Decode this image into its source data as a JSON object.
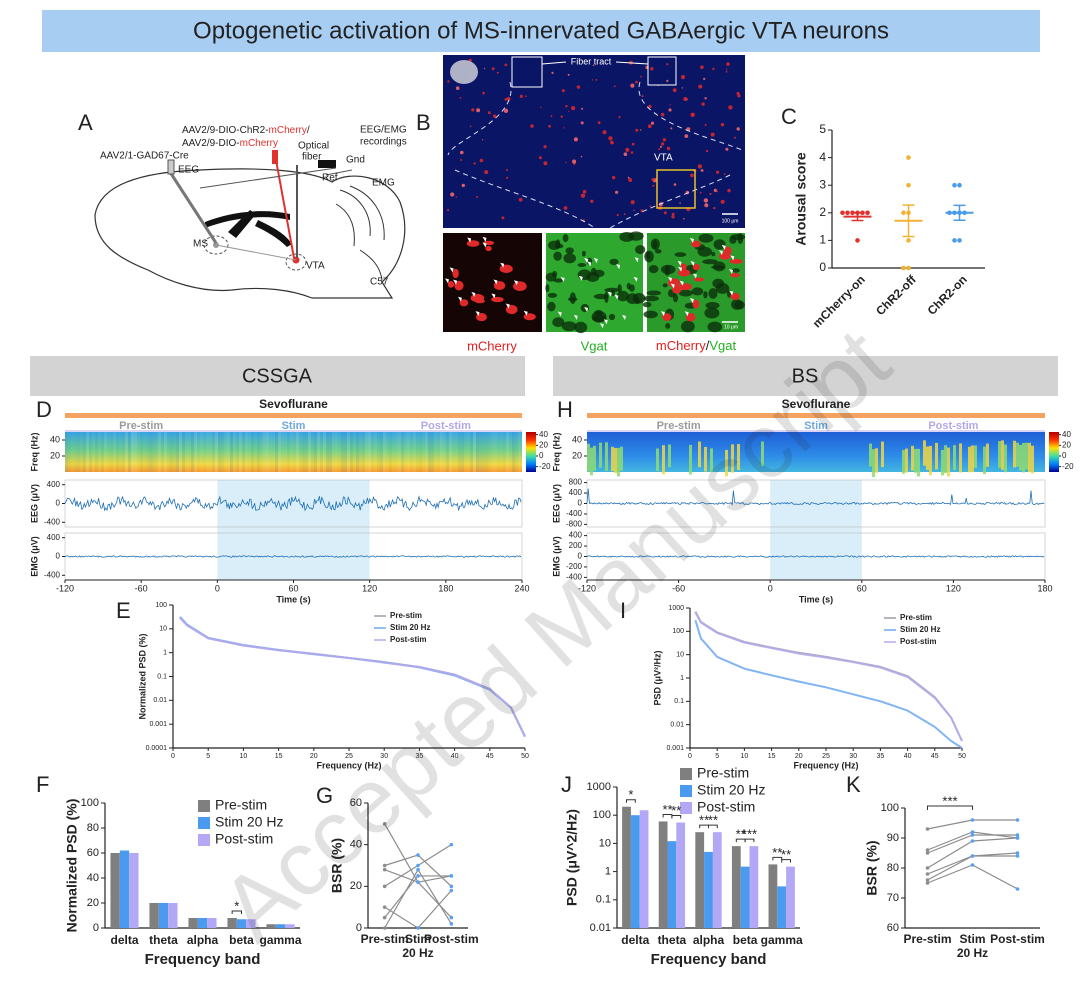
{
  "title": "Optogenetic activation of MS-innervated GABAergic VTA neurons",
  "watermark": "Accepted Manuscript",
  "panel_a": {
    "letter": "A",
    "virus1": "AAV2/9-DIO-ChR2-",
    "virus1_mark": "mCherry",
    "virus1_end": "/",
    "virus2": "AAV2/9-DIO-",
    "virus2_mark": "mCherry",
    "cre": "AAV2/1-GAD67-Cre",
    "eeg": "EEG",
    "fiber": "Optical",
    "fiber2": "fiber",
    "rec": "EEG/EMG",
    "rec2": "recordings",
    "gnd": "Gnd",
    "ref": "Ref",
    "emg": "EMG",
    "ms": "MS",
    "vta": "VTA",
    "strain": "C57"
  },
  "panel_b": {
    "letter": "B",
    "fiber_tract": "Fiber tract",
    "vta": "VTA",
    "scale1": "100 μm",
    "scale2": "10 μm",
    "ch1": "mCherry",
    "ch2": "Vgat",
    "merge1": "mCherry",
    "merge_sep": "/",
    "merge2": "Vgat"
  },
  "sections": [
    "CSSGA",
    "BS"
  ],
  "chart_data": [
    {
      "type": "dot",
      "letter": "C",
      "ylabel": "Arousal score",
      "ylim": [
        0,
        5
      ],
      "yticks": [
        0,
        1,
        2,
        3,
        4,
        5
      ],
      "categories": [
        "mCherry-on",
        "ChR2-off",
        "ChR2-on"
      ],
      "colors": [
        "#e0312f",
        "#f2b233",
        "#4a9be8"
      ],
      "points": [
        [
          2,
          2,
          2,
          2,
          2,
          2,
          1
        ],
        [
          4,
          3,
          2,
          2,
          1,
          0,
          0
        ],
        [
          3,
          3,
          2,
          2,
          2,
          2,
          1,
          1
        ]
      ],
      "means": [
        1.86,
        1.71,
        2.0
      ],
      "sems": [
        0.14,
        0.57,
        0.27
      ]
    },
    {
      "type": "recording",
      "letter": "D",
      "label": "Sevoflurane",
      "phases": [
        "Pre-stim",
        "Stim",
        "Post-stim"
      ],
      "phase_colors": [
        "#9a9a9a",
        "#6fa8dc",
        "#b4a7e8"
      ],
      "bar_color": "#f4a460",
      "stim_color": "#cfeaf8",
      "freq_label": "Freq (Hz)",
      "freq_lim": [
        0,
        50
      ],
      "freq_ticks": [
        40,
        20
      ],
      "colorbar_lim": [
        -30,
        45
      ],
      "colorbar_ticks": [
        40,
        20,
        0,
        -20
      ],
      "eeg_label": "EEG (μV)",
      "eeg_lim": [
        -500,
        500
      ],
      "eeg_ticks": [
        400,
        0,
        -400
      ],
      "emg_label": "EMG (μV)",
      "emg_lim": [
        -500,
        500
      ],
      "emg_ticks": [
        400,
        0,
        -400
      ],
      "xlabel": "Time (s)",
      "xlim": [
        -120,
        240
      ],
      "xticks": [
        -120,
        -60,
        0,
        60,
        120,
        180,
        240
      ],
      "stim": [
        0,
        120
      ]
    },
    {
      "type": "line",
      "letter": "E",
      "ylabel": "Normalized PSD (%)",
      "xlabel": "Frequency (Hz)",
      "ylog": true,
      "ylim": [
        0.0001,
        100
      ],
      "yticks": [
        0.0001,
        0.001,
        0.01,
        0.1,
        1,
        10,
        100
      ],
      "xlim": [
        0,
        50
      ],
      "xticks": [
        0,
        5,
        10,
        15,
        20,
        25,
        30,
        35,
        40,
        45,
        50
      ],
      "x": [
        1,
        2,
        5,
        10,
        15,
        20,
        25,
        30,
        35,
        40,
        45,
        48,
        50
      ],
      "legend": "top-right",
      "series": [
        {
          "name": "Pre-stim",
          "color": "#9b9bab",
          "values": [
            30,
            14,
            4,
            2,
            1.3,
            0.9,
            0.6,
            0.4,
            0.25,
            0.12,
            0.03,
            0.005,
            0.0003
          ]
        },
        {
          "name": "Stim 20 Hz",
          "color": "#6aa8f0",
          "values": [
            32,
            15,
            4.2,
            2.1,
            1.3,
            0.85,
            0.6,
            0.4,
            0.24,
            0.11,
            0.028,
            0.005,
            0.0003
          ]
        },
        {
          "name": "Post-stim",
          "color": "#b9a9ee",
          "values": [
            29,
            14,
            4,
            2,
            1.25,
            0.9,
            0.6,
            0.38,
            0.25,
            0.12,
            0.03,
            0.005,
            0.0003
          ]
        }
      ]
    },
    {
      "type": "bar",
      "letter": "F",
      "ylabel": "Normalized PSD (%)",
      "xlabel": "Frequency band",
      "ylim": [
        0,
        100
      ],
      "yticks": [
        0,
        20,
        40,
        60,
        80,
        100
      ],
      "categories": [
        "delta",
        "theta",
        "alpha",
        "beta",
        "gamma"
      ],
      "legend": "top-right",
      "series": [
        {
          "name": "Pre-stim",
          "color": "#7f7f7f",
          "values": [
            60,
            20,
            8,
            8,
            3
          ]
        },
        {
          "name": "Stim 20 Hz",
          "color": "#4a9bf0",
          "values": [
            62,
            20,
            8,
            7,
            3
          ]
        },
        {
          "name": "Post-stim",
          "color": "#b3a8f5",
          "values": [
            60,
            20,
            8,
            7,
            3
          ]
        }
      ],
      "annotations": [
        {
          "label": "*",
          "category": "beta",
          "between": [
            "Pre-stim",
            "Stim 20 Hz"
          ]
        }
      ]
    },
    {
      "type": "paired",
      "letter": "G",
      "ylabel": "BSR (%)",
      "ylim": [
        0,
        60
      ],
      "yticks": [
        0,
        20,
        40,
        60
      ],
      "categories": [
        "Pre-stim",
        "Stim",
        "Post-stim"
      ],
      "category_note": "20 Hz",
      "marker_color": "#5aa0f0",
      "series": [
        {
          "color": "#8c8c8c",
          "values": [
            50,
            22,
            5
          ]
        },
        {
          "color": "#8c8c8c",
          "values": [
            30,
            35,
            20
          ]
        },
        {
          "color": "#8c8c8c",
          "values": [
            28,
            22,
            25
          ]
        },
        {
          "color": "#8c8c8c",
          "values": [
            20,
            30,
            40
          ]
        },
        {
          "color": "#8c8c8c",
          "values": [
            10,
            0,
            18
          ]
        },
        {
          "color": "#8c8c8c",
          "values": [
            5,
            25,
            25
          ]
        },
        {
          "color": "#8c8c8c",
          "values": [
            0,
            28,
            2
          ]
        }
      ]
    },
    {
      "type": "recording",
      "letter": "H",
      "label": "Sevoflurane",
      "phases": [
        "Pre-stim",
        "Stim",
        "Post-stim"
      ],
      "phase_colors": [
        "#9a9a9a",
        "#6fa8dc",
        "#b4a7e8"
      ],
      "bar_color": "#f4a460",
      "stim_color": "#cfeaf8",
      "freq_label": "Freq (Hz)",
      "freq_lim": [
        0,
        50
      ],
      "freq_ticks": [
        40,
        20
      ],
      "colorbar_lim": [
        -30,
        45
      ],
      "colorbar_ticks": [
        40,
        20,
        0,
        -20
      ],
      "eeg_label": "EEG (μV)",
      "eeg_lim": [
        -900,
        900
      ],
      "eeg_ticks": [
        800,
        400,
        0,
        -400,
        -800
      ],
      "emg_label": "EMG (μV)",
      "emg_lim": [
        -450,
        450
      ],
      "emg_ticks": [
        400,
        200,
        0,
        -200,
        -400
      ],
      "xlabel": "Time (s)",
      "xlim": [
        -120,
        180
      ],
      "xticks": [
        -120,
        -60,
        0,
        60,
        120,
        180
      ],
      "stim": [
        0,
        60
      ]
    },
    {
      "type": "line",
      "letter": "I",
      "ylabel": "PSD (μV²/Hz)",
      "xlabel": "Frequency (Hz)",
      "ylog": true,
      "ylim": [
        0.001,
        1000
      ],
      "yticks": [
        0.001,
        0.01,
        0.1,
        1,
        10,
        100,
        1000
      ],
      "xlim": [
        0,
        50
      ],
      "xticks": [
        0,
        5,
        10,
        15,
        20,
        25,
        30,
        35,
        40,
        45,
        50
      ],
      "x": [
        1,
        2,
        5,
        10,
        15,
        20,
        25,
        30,
        35,
        40,
        45,
        48,
        50
      ],
      "legend": "top-right",
      "series": [
        {
          "name": "Pre-stim",
          "color": "#9b9bab",
          "values": [
            700,
            250,
            90,
            35,
            20,
            12,
            8,
            5,
            3,
            1.2,
            0.15,
            0.02,
            0.002
          ]
        },
        {
          "name": "Stim 20 Hz",
          "color": "#6aa8f0",
          "values": [
            300,
            50,
            8,
            2.5,
            1.3,
            0.7,
            0.4,
            0.2,
            0.1,
            0.04,
            0.008,
            0.002,
            0.001
          ]
        },
        {
          "name": "Post-stim",
          "color": "#b9a9ee",
          "values": [
            650,
            240,
            85,
            33,
            19,
            11,
            7.5,
            4.8,
            2.8,
            1.1,
            0.14,
            0.02,
            0.002
          ]
        }
      ]
    },
    {
      "type": "bar",
      "letter": "J",
      "ylabel": "PSD (μV^2/Hz)",
      "xlabel": "Frequency band",
      "ylog": true,
      "ylim": [
        0.01,
        1000
      ],
      "yticks": [
        0.01,
        0.1,
        1,
        10,
        100,
        1000
      ],
      "categories": [
        "delta",
        "theta",
        "alpha",
        "beta",
        "gamma"
      ],
      "legend": "top-right",
      "series": [
        {
          "name": "Pre-stim",
          "color": "#7f7f7f",
          "values": [
            200,
            60,
            25,
            8,
            1.8
          ]
        },
        {
          "name": "Stim 20 Hz",
          "color": "#4a9bf0",
          "values": [
            100,
            12,
            5,
            1.5,
            0.3
          ]
        },
        {
          "name": "Post-stim",
          "color": "#b3a8f5",
          "values": [
            150,
            55,
            25,
            8,
            1.5
          ]
        }
      ],
      "annotations": [
        {
          "label": "*",
          "category": "delta",
          "between": [
            "Pre-stim",
            "Stim 20 Hz"
          ]
        },
        {
          "label": "**",
          "category": "theta",
          "between": [
            "Pre-stim",
            "Stim 20 Hz"
          ]
        },
        {
          "label": "**",
          "category": "theta",
          "between": [
            "Stim 20 Hz",
            "Post-stim"
          ]
        },
        {
          "label": "**",
          "category": "alpha",
          "between": [
            "Pre-stim",
            "Stim 20 Hz"
          ]
        },
        {
          "label": "**",
          "category": "alpha",
          "between": [
            "Stim 20 Hz",
            "Post-stim"
          ]
        },
        {
          "label": "**",
          "category": "beta",
          "between": [
            "Pre-stim",
            "Stim 20 Hz"
          ]
        },
        {
          "label": "***",
          "category": "beta",
          "between": [
            "Stim 20 Hz",
            "Post-stim"
          ]
        },
        {
          "label": "**",
          "category": "gamma",
          "between": [
            "Pre-stim",
            "Stim 20 Hz"
          ]
        },
        {
          "label": "**",
          "category": "gamma",
          "between": [
            "Stim 20 Hz",
            "Post-stim"
          ]
        }
      ]
    },
    {
      "type": "paired",
      "letter": "K",
      "ylabel": "BSR (%)",
      "ylim": [
        60,
        100
      ],
      "yticks": [
        60,
        70,
        80,
        90,
        100
      ],
      "categories": [
        "Pre-stim",
        "Stim",
        "Post-stim"
      ],
      "category_note": "20 Hz",
      "marker_color": "#5aa0f0",
      "series": [
        {
          "color": "#8c8c8c",
          "values": [
            93,
            96,
            96
          ]
        },
        {
          "color": "#8c8c8c",
          "values": [
            86,
            92,
            90
          ]
        },
        {
          "color": "#8c8c8c",
          "values": [
            85,
            91,
            91
          ]
        },
        {
          "color": "#8c8c8c",
          "values": [
            80,
            89,
            90
          ]
        },
        {
          "color": "#8c8c8c",
          "values": [
            78,
            84,
            85
          ]
        },
        {
          "color": "#8c8c8c",
          "values": [
            76,
            84,
            84
          ]
        },
        {
          "color": "#8c8c8c",
          "values": [
            75,
            81,
            73
          ]
        }
      ],
      "annotations": [
        {
          "label": "***",
          "between": [
            "Pre-stim",
            "Stim"
          ]
        }
      ]
    }
  ]
}
